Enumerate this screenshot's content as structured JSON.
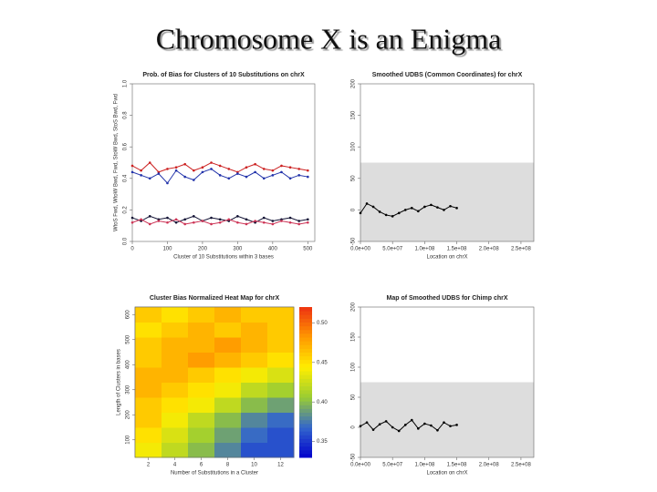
{
  "slide_title": "Chromosome X is an Enigma",
  "chart_data": [
    {
      "type": "line",
      "title": "Prob. of Bias for Clusters of 10 Substitutions on chrX",
      "xlabel": "Cluster of 10 Substitutions within 3 bases",
      "ylabel": "WtoS Fwd, WtoW Bwd, Fwd, StoW Bwd, StoS Bwd, Fwd",
      "x": [
        0,
        25,
        50,
        75,
        100,
        125,
        150,
        175,
        200,
        225,
        250,
        275,
        300,
        325,
        350,
        375,
        400,
        425,
        450,
        475,
        500
      ],
      "xlim": [
        0,
        520
      ],
      "xticks": [
        0,
        100,
        200,
        300,
        400,
        500
      ],
      "ylim": [
        0,
        1.0
      ],
      "yticks": [
        {
          "value": 0,
          "label": "0.0"
        },
        0.2,
        0.4,
        0.6,
        0.8,
        {
          "value": 1,
          "label": "1.0"
        }
      ],
      "series": [
        {
          "color": "#cc2222",
          "values": [
            0.48,
            0.45,
            0.5,
            0.44,
            0.46,
            0.47,
            0.49,
            0.45,
            0.47,
            0.5,
            0.48,
            0.46,
            0.44,
            0.47,
            0.49,
            0.46,
            0.45,
            0.48,
            0.47,
            0.46,
            0.45
          ]
        },
        {
          "color": "#2233aa",
          "values": [
            0.44,
            0.42,
            0.4,
            0.43,
            0.37,
            0.45,
            0.41,
            0.39,
            0.44,
            0.46,
            0.42,
            0.4,
            0.43,
            0.41,
            0.44,
            0.4,
            0.42,
            0.44,
            0.4,
            0.42,
            0.41
          ]
        },
        {
          "color": "#111133",
          "values": [
            0.15,
            0.13,
            0.16,
            0.14,
            0.15,
            0.12,
            0.14,
            0.16,
            0.13,
            0.15,
            0.14,
            0.13,
            0.16,
            0.14,
            0.12,
            0.15,
            0.13,
            0.14,
            0.15,
            0.13,
            0.14
          ]
        },
        {
          "color": "#cc3355",
          "values": [
            0.12,
            0.14,
            0.11,
            0.13,
            0.12,
            0.14,
            0.11,
            0.12,
            0.13,
            0.11,
            0.12,
            0.14,
            0.12,
            0.11,
            0.13,
            0.12,
            0.11,
            0.13,
            0.12,
            0.11,
            0.12
          ]
        }
      ]
    },
    {
      "type": "line",
      "title": "Smoothed UDBS (Common Coordinates) for chrX",
      "xlabel": "Location on chrX",
      "x": [
        0,
        10000000,
        20000000,
        30000000,
        40000000,
        50000000,
        60000000,
        70000000,
        80000000,
        90000000,
        100000000,
        110000000,
        120000000,
        130000000,
        140000000,
        150000000
      ],
      "xlim": [
        0,
        270000000
      ],
      "xticks": [
        {
          "value": 0,
          "label": "0.0e+00"
        },
        {
          "value": 50000000,
          "label": "5.0e+07"
        },
        {
          "value": 100000000,
          "label": "1.0e+08"
        },
        {
          "value": 150000000,
          "label": "1.5e+08"
        },
        {
          "value": 200000000,
          "label": "2.0e+08"
        },
        {
          "value": 250000000,
          "label": "2.5e+08"
        }
      ],
      "ylim": [
        -50,
        200
      ],
      "yticks": [
        -50,
        0,
        50,
        100,
        150,
        200
      ],
      "shaded_range": [
        -50,
        75
      ],
      "series": [
        {
          "color": "#000000",
          "values": [
            -5,
            10,
            5,
            -3,
            -8,
            -10,
            -5,
            0,
            3,
            -2,
            5,
            8,
            4,
            0,
            6,
            3
          ]
        }
      ]
    },
    {
      "type": "heatmap",
      "title": "Cluster Bias Normalized Heat Map for chrX",
      "xlabel": "Number of Substitutions in a Cluster",
      "ylabel": "Length of Clusters in bases",
      "xlim": [
        1,
        13
      ],
      "xticks": [
        2,
        4,
        6,
        8,
        10,
        12
      ],
      "ylim": [
        30,
        630
      ],
      "yticks": [
        100,
        200,
        300,
        400,
        500,
        600
      ],
      "clim": [
        0.33,
        0.52
      ],
      "cticks": [
        0.35,
        {
          "value": 0.4,
          "label": "0.40"
        },
        0.45,
        {
          "value": 0.5,
          "label": "0.50"
        }
      ],
      "colormap": [
        "#0000cc",
        "#3366cc",
        "#99cc33",
        "#ffee00",
        "#ff9900",
        "#ee3311"
      ],
      "values": [
        [
          0.44,
          0.42,
          0.4,
          0.38,
          0.36,
          0.36
        ],
        [
          0.45,
          0.43,
          0.41,
          0.39,
          0.37,
          0.36
        ],
        [
          0.46,
          0.44,
          0.42,
          0.4,
          0.38,
          0.37
        ],
        [
          0.46,
          0.45,
          0.44,
          0.42,
          0.4,
          0.39
        ],
        [
          0.47,
          0.46,
          0.45,
          0.44,
          0.42,
          0.41
        ],
        [
          0.47,
          0.47,
          0.46,
          0.45,
          0.44,
          0.43
        ],
        [
          0.46,
          0.47,
          0.48,
          0.47,
          0.46,
          0.45
        ],
        [
          0.46,
          0.47,
          0.47,
          0.48,
          0.47,
          0.46
        ],
        [
          0.45,
          0.46,
          0.47,
          0.46,
          0.47,
          0.46
        ],
        [
          0.46,
          0.45,
          0.46,
          0.47,
          0.46,
          0.46
        ]
      ]
    },
    {
      "type": "line",
      "title": "Map of Smoothed UDBS for Chimp chrX",
      "xlabel": "Location on chrX",
      "x": [
        0,
        10000000,
        20000000,
        30000000,
        40000000,
        50000000,
        60000000,
        70000000,
        80000000,
        90000000,
        100000000,
        110000000,
        120000000,
        130000000,
        140000000,
        150000000
      ],
      "xlim": [
        0,
        270000000
      ],
      "xticks": [
        {
          "value": 0,
          "label": "0.0e+00"
        },
        {
          "value": 50000000,
          "label": "5.0e+07"
        },
        {
          "value": 100000000,
          "label": "1.0e+08"
        },
        {
          "value": 150000000,
          "label": "1.5e+08"
        },
        {
          "value": 200000000,
          "label": "2.0e+08"
        },
        {
          "value": 250000000,
          "label": "2.5e+08"
        }
      ],
      "ylim": [
        -50,
        200
      ],
      "yticks": [
        -50,
        0,
        50,
        100,
        150,
        200
      ],
      "shaded_range": [
        -50,
        75
      ],
      "series": [
        {
          "color": "#000000",
          "values": [
            2,
            8,
            -4,
            5,
            10,
            0,
            -6,
            4,
            12,
            -2,
            6,
            3,
            -5,
            8,
            2,
            4
          ]
        }
      ]
    }
  ]
}
